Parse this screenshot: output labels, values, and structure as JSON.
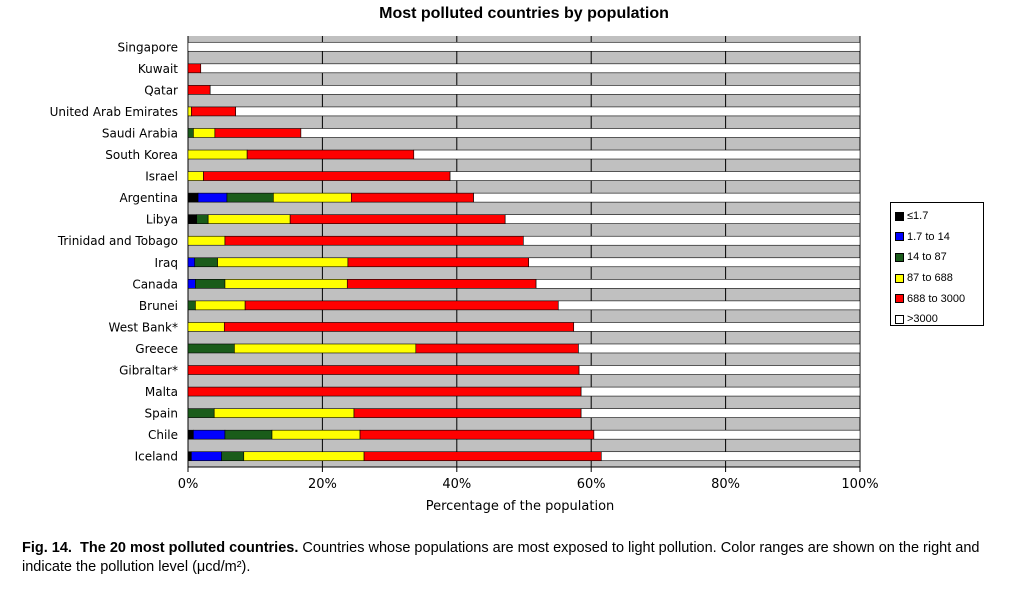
{
  "caption": {
    "label": "Fig. 14.",
    "lead": "The 20 most polluted countries.",
    "text": "Countries whose populations are most exposed to light pollution. Color ranges are shown on the right and indicate the pollution level (μcd/m²)."
  },
  "chart_data": {
    "type": "bar",
    "orientation": "horizontal",
    "stacked": true,
    "title": "Most polluted countries by population",
    "xlabel": "Percentage of the population",
    "ylabel": "",
    "xlim": [
      0,
      100
    ],
    "xticks": [
      "0%",
      "20%",
      "40%",
      "60%",
      "80%",
      "100%"
    ],
    "grid": true,
    "legend_position": "right",
    "categories": [
      "Singapore",
      "Kuwait",
      "Qatar",
      "United Arab Emirates",
      "Saudi Arabia",
      "South Korea",
      "Israel",
      "Argentina",
      "Libya",
      "Trinidad and Tobago",
      "Iraq",
      "Canada",
      "Brunei",
      "West Bank*",
      "Greece",
      "Gibraltar*",
      "Malta",
      "Spain",
      "Chile",
      "Iceland"
    ],
    "series": [
      {
        "name": "≤1.7",
        "color": "#000000",
        "values": [
          0,
          0,
          0,
          0,
          0,
          0,
          0,
          1.5,
          1.3,
          0,
          0,
          0,
          0,
          0,
          0,
          0,
          0,
          0,
          0.8,
          0.5
        ]
      },
      {
        "name": "1.7 to 14",
        "color": "#0000ff",
        "values": [
          0,
          0,
          0,
          0,
          0,
          0,
          0,
          4.3,
          0,
          0,
          1.0,
          1.1,
          0,
          0,
          0,
          0,
          0,
          0,
          4.7,
          4.5
        ]
      },
      {
        "name": "14 to 87",
        "color": "#1a5c1a",
        "values": [
          0,
          0,
          0,
          0,
          0.8,
          0,
          0,
          6.9,
          1.7,
          0,
          3.4,
          4.4,
          1.1,
          0,
          6.9,
          0,
          0,
          3.9,
          7.0,
          3.3
        ]
      },
      {
        "name": "87 to 688",
        "color": "#ffff00",
        "values": [
          0,
          0,
          0,
          0.5,
          3.2,
          8.8,
          2.3,
          11.6,
          12.2,
          5.5,
          19.4,
          18.2,
          7.4,
          5.4,
          27.0,
          0,
          0,
          20.8,
          13.1,
          17.9
        ]
      },
      {
        "name": "688 to 3000",
        "color": "#ff0000",
        "values": [
          0,
          1.9,
          3.3,
          6.6,
          12.8,
          24.8,
          36.7,
          18.2,
          32.0,
          44.4,
          26.9,
          28.1,
          46.6,
          52.0,
          24.2,
          58.2,
          58.5,
          33.8,
          34.8,
          35.3
        ]
      },
      {
        "name": ">3000",
        "color": "#ffffff",
        "values": [
          100,
          98.1,
          96.7,
          92.9,
          83.2,
          66.4,
          61.0,
          57.5,
          52.8,
          50.1,
          49.3,
          48.2,
          44.9,
          42.6,
          41.9,
          41.8,
          41.5,
          41.5,
          39.6,
          38.5
        ]
      }
    ]
  }
}
